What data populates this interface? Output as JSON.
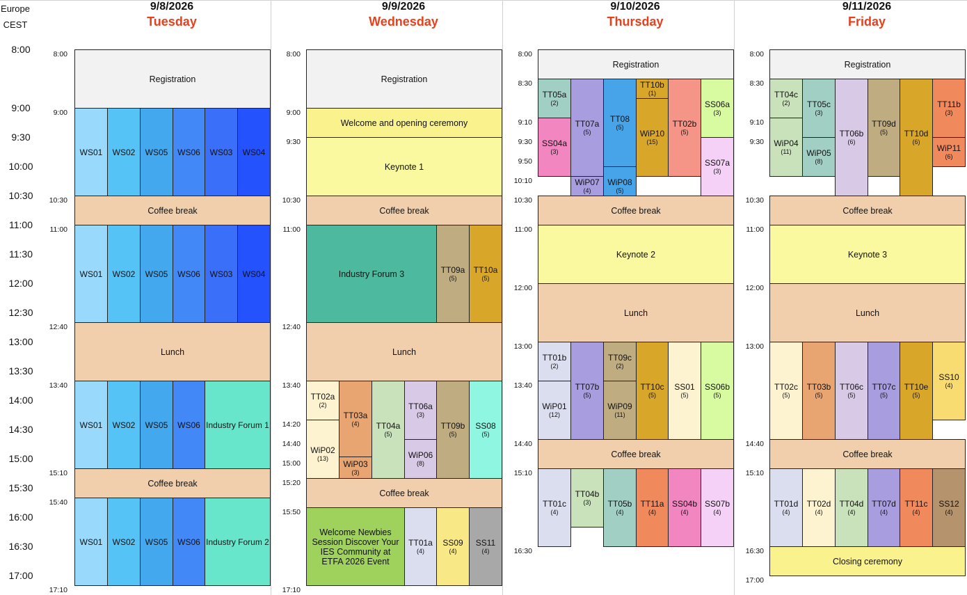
{
  "timezone": {
    "region": "Europe",
    "zone": "CEST"
  },
  "hour_labels": [
    "8:00",
    "9:00",
    "9:30",
    "10:00",
    "10:30",
    "11:00",
    "11:30",
    "12:00",
    "12:30",
    "13:00",
    "13:30",
    "14:00",
    "14:30",
    "15:00",
    "15:30",
    "16:00",
    "16:30",
    "17:00"
  ],
  "days": [
    {
      "date": "9/8/2026",
      "name": "Tuesday",
      "ticks": [
        "8:00",
        "9:00",
        "10:30",
        "11:00",
        "12:40",
        "13:40",
        "15:10",
        "15:40",
        "17:10"
      ],
      "sessions": [
        {
          "label": "Registration",
          "color": "#f2f2f2"
        },
        {
          "label": "WS01",
          "color": "#99d9fb"
        },
        {
          "label": "WS02",
          "color": "#55c3f6"
        },
        {
          "label": "WS05",
          "color": "#43a8ee"
        },
        {
          "label": "WS06",
          "color": "#4289f7"
        },
        {
          "label": "WS03",
          "color": "#3a6ffa"
        },
        {
          "label": "WS04",
          "color": "#2453fd"
        },
        {
          "label": "Coffee break",
          "color": "#f1cfad"
        },
        {
          "label": "WS01",
          "color": "#99d9fb"
        },
        {
          "label": "WS02",
          "color": "#55c3f6"
        },
        {
          "label": "WS05",
          "color": "#43a8ee"
        },
        {
          "label": "WS06",
          "color": "#4289f7"
        },
        {
          "label": "WS03",
          "color": "#3a6ffa"
        },
        {
          "label": "WS04",
          "color": "#2453fd"
        },
        {
          "label": "Lunch",
          "color": "#f1cfad"
        },
        {
          "label": "WS01",
          "color": "#99d9fb"
        },
        {
          "label": "WS02",
          "color": "#55c3f6"
        },
        {
          "label": "WS05",
          "color": "#43a8ee"
        },
        {
          "label": "WS06",
          "color": "#4289f7"
        },
        {
          "label": "Industry Forum 1",
          "color": "#68e6cc"
        },
        {
          "label": "Coffee break",
          "color": "#f1cfad"
        },
        {
          "label": "WS01",
          "color": "#99d9fb"
        },
        {
          "label": "WS02",
          "color": "#55c3f6"
        },
        {
          "label": "WS05",
          "color": "#43a8ee"
        },
        {
          "label": "WS06",
          "color": "#4289f7"
        },
        {
          "label": "Industry Forum 2",
          "color": "#68e6cc"
        }
      ]
    },
    {
      "date": "9/9/2026",
      "name": "Wednesday",
      "ticks": [
        "8:00",
        "9:00",
        "9:30",
        "10:30",
        "11:00",
        "12:40",
        "13:40",
        "14:20",
        "14:40",
        "15:00",
        "15:20",
        "15:50",
        "17:10"
      ],
      "sessions": [
        {
          "label": "Registration",
          "color": "#f2f2f2"
        },
        {
          "label": "Welcome and opening ceremony",
          "color": "#faf38d"
        },
        {
          "label": "Keynote 1",
          "color": "#fbf99f"
        },
        {
          "label": "Coffee break",
          "color": "#f1cfad"
        },
        {
          "label": "Industry Forum 3",
          "color": "#4db99f"
        },
        {
          "label": "TT09a",
          "sub": "(5)",
          "color": "#c0ac81"
        },
        {
          "label": "TT10a",
          "sub": "(5)",
          "color": "#d8a72a"
        },
        {
          "label": "Lunch",
          "color": "#f1cfad"
        },
        {
          "label": "TT02a",
          "sub": "(2)",
          "color": "#fdf3d0"
        },
        {
          "label": "WiP02",
          "sub": "(13)",
          "color": "#fdf3d0"
        },
        {
          "label": "TT03a",
          "sub": "(4)",
          "color": "#e8a571"
        },
        {
          "label": "WiP03",
          "sub": "(3)",
          "color": "#e8a571"
        },
        {
          "label": "TT04a",
          "sub": "(5)",
          "color": "#c9e2bb"
        },
        {
          "label": "TT06a",
          "sub": "(3)",
          "color": "#d8cae7"
        },
        {
          "label": "WiP06",
          "sub": "(8)",
          "color": "#d8cae7"
        },
        {
          "label": "TT09b",
          "sub": "(5)",
          "color": "#c0ac81"
        },
        {
          "label": "SS08",
          "sub": "(5)",
          "color": "#8ef6e1"
        },
        {
          "label": "Coffee break",
          "color": "#f1cfad"
        },
        {
          "label": "Welcome Newbies Session Discover Your IES Community at ETFA 2026 Event",
          "color": "#9fd25c"
        },
        {
          "label": "TT01a",
          "sub": "(4)",
          "color": "#dadeef"
        },
        {
          "label": "SS09",
          "sub": "(4)",
          "color": "#f8e986"
        },
        {
          "label": "SS11",
          "sub": "(4)",
          "color": "#a8a8a8"
        }
      ]
    },
    {
      "date": "9/10/2026",
      "name": "Thursday",
      "ticks": [
        "8:00",
        "8:30",
        "9:10",
        "9:30",
        "9:50",
        "10:10",
        "10:30",
        "11:00",
        "12:00",
        "13:00",
        "13:40",
        "14:40",
        "15:10",
        "16:30"
      ],
      "sessions": [
        {
          "label": "Registration",
          "color": "#f2f2f2"
        },
        {
          "label": "TT05a",
          "sub": "(2)",
          "color": "#a1cfc4"
        },
        {
          "label": "SS04a",
          "sub": "(3)",
          "color": "#f286c1"
        },
        {
          "label": "TT07a",
          "sub": "(5)",
          "color": "#a89ddf"
        },
        {
          "label": "WiP07",
          "sub": "(4)",
          "color": "#a89ddf"
        },
        {
          "label": "TT08",
          "sub": "(5)",
          "color": "#47a4e9"
        },
        {
          "label": "WiP08",
          "sub": "(5)",
          "color": "#47a4e9"
        },
        {
          "label": "TT10b",
          "sub": "(1)",
          "color": "#d8a72a"
        },
        {
          "label": "WiP10",
          "sub": "(15)",
          "color": "#d8a72a"
        },
        {
          "label": "TT02b",
          "sub": "(5)",
          "color": "#f49588"
        },
        {
          "label": "SS06a",
          "sub": "(3)",
          "color": "#d8fba2"
        },
        {
          "label": "SS07a",
          "sub": "(3)",
          "color": "#f5d1f7"
        },
        {
          "label": "Coffee break",
          "color": "#f1cfad"
        },
        {
          "label": "Keynote 2",
          "color": "#fbf99f"
        },
        {
          "label": "Lunch",
          "color": "#f1cfad"
        },
        {
          "label": "TT01b",
          "sub": "(2)",
          "color": "#dadeef"
        },
        {
          "label": "WiP01",
          "sub": "(12)",
          "color": "#dadeef"
        },
        {
          "label": "TT07b",
          "sub": "(5)",
          "color": "#a89ddf"
        },
        {
          "label": "TT09c",
          "sub": "(2)",
          "color": "#c0ac81"
        },
        {
          "label": "WiP09",
          "sub": "(11)",
          "color": "#c0ac81"
        },
        {
          "label": "TT10c",
          "sub": "(5)",
          "color": "#d8a72a"
        },
        {
          "label": "SS01",
          "sub": "(5)",
          "color": "#fdf3d0"
        },
        {
          "label": "SS06b",
          "sub": "(5)",
          "color": "#d8fba2"
        },
        {
          "label": "Coffee break",
          "color": "#f1cfad"
        },
        {
          "label": "TT01c",
          "sub": "(4)",
          "color": "#dadeef"
        },
        {
          "label": "TT04b",
          "sub": "(3)",
          "color": "#c9e2bb"
        },
        {
          "label": "TT05b",
          "sub": "(4)",
          "color": "#a1cfc4"
        },
        {
          "label": "TT11a",
          "sub": "(4)",
          "color": "#f08a5d"
        },
        {
          "label": "SS04b",
          "sub": "(4)",
          "color": "#f286c1"
        },
        {
          "label": "SS07b",
          "sub": "(4)",
          "color": "#f5d1f7"
        }
      ]
    },
    {
      "date": "9/11/2026",
      "name": "Friday",
      "ticks": [
        "8:00",
        "8:30",
        "9:10",
        "9:30",
        "10:30",
        "11:00",
        "12:00",
        "13:00",
        "14:40",
        "15:10",
        "16:30",
        "17:00"
      ],
      "sessions": [
        {
          "label": "Registration",
          "color": "#f2f2f2"
        },
        {
          "label": "TT04c",
          "sub": "(2)",
          "color": "#c9e2bb"
        },
        {
          "label": "WiP04",
          "sub": "(11)",
          "color": "#c9e2bb"
        },
        {
          "label": "TT05c",
          "sub": "(3)",
          "color": "#a1cfc4"
        },
        {
          "label": "WiP05",
          "sub": "(8)",
          "color": "#a1cfc4"
        },
        {
          "label": "TT06b",
          "sub": "(6)",
          "color": "#d8cae7"
        },
        {
          "label": "TT09d",
          "sub": "(5)",
          "color": "#c0ac81"
        },
        {
          "label": "TT10d",
          "sub": "(6)",
          "color": "#d8a72a"
        },
        {
          "label": "TT11b",
          "sub": "(3)",
          "color": "#f08a5d"
        },
        {
          "label": "WiP11",
          "sub": "(6)",
          "color": "#f08a5d"
        },
        {
          "label": "Coffee break",
          "color": "#f1cfad"
        },
        {
          "label": "Keynote 3",
          "color": "#fbf99f"
        },
        {
          "label": "Lunch",
          "color": "#f1cfad"
        },
        {
          "label": "TT02c",
          "sub": "(5)",
          "color": "#fdf3d0"
        },
        {
          "label": "TT03b",
          "sub": "(5)",
          "color": "#e8a571"
        },
        {
          "label": "TT06c",
          "sub": "(5)",
          "color": "#d8cae7"
        },
        {
          "label": "TT07c",
          "sub": "(5)",
          "color": "#a89ddf"
        },
        {
          "label": "TT10e",
          "sub": "(5)",
          "color": "#d8a72a"
        },
        {
          "label": "SS10",
          "sub": "(4)",
          "color": "#f8dc72"
        },
        {
          "label": "Coffee break",
          "color": "#f1cfad"
        },
        {
          "label": "TT01d",
          "sub": "(4)",
          "color": "#dadeef"
        },
        {
          "label": "TT02d",
          "sub": "(4)",
          "color": "#fdf3d0"
        },
        {
          "label": "TT04d",
          "sub": "(4)",
          "color": "#c9e2bb"
        },
        {
          "label": "TT07d",
          "sub": "(4)",
          "color": "#a89ddf"
        },
        {
          "label": "TT11c",
          "sub": "(4)",
          "color": "#f08a5d"
        },
        {
          "label": "SS12",
          "sub": "(4)",
          "color": "#b5936c"
        },
        {
          "label": "Closing ceremony",
          "color": "#faf38d"
        }
      ]
    }
  ]
}
